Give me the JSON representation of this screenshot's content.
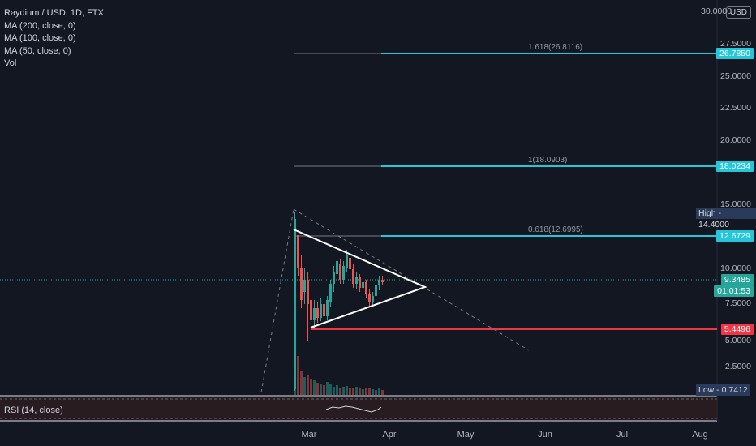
{
  "legend": {
    "symbol": "Raydium / USD, 1D, FTX",
    "ma200": "MA (200, close, 0)",
    "ma100": "MA (100, close, 0)",
    "ma50": "MA (50, close, 0)",
    "vol": "Vol"
  },
  "currency": "USD",
  "y_axis_labels": [
    "30.0000",
    "27.5000",
    "25.0000",
    "22.5000",
    "20.0000",
    "15.0000",
    "10.0000",
    "7.5000",
    "5.0000",
    "2.5000"
  ],
  "x_axis_labels": [
    "Mar",
    "Apr",
    "May",
    "Jun",
    "Jul",
    "Aug"
  ],
  "fib_levels": [
    {
      "label": "1.618(26.8116)",
      "price_tag": "26.7850"
    },
    {
      "label": "1(18.0903)",
      "price_tag": "18.0234"
    },
    {
      "label": "0.618(12.6995)",
      "price_tag": "12.6729"
    }
  ],
  "support_tag": "5.4496",
  "last_price": "9.3485",
  "countdown": "01:01:53",
  "high": {
    "label": "High",
    "value": "14.4000"
  },
  "low": {
    "label": "Low",
    "value": "0.7412"
  },
  "rsi_label": "RSI (14, close)",
  "colors": {
    "background": "#131722",
    "fib": "#26c6da",
    "support": "#f23645",
    "up": "#26a69a",
    "down": "#ef5350",
    "triangle": "#ffffff"
  }
}
